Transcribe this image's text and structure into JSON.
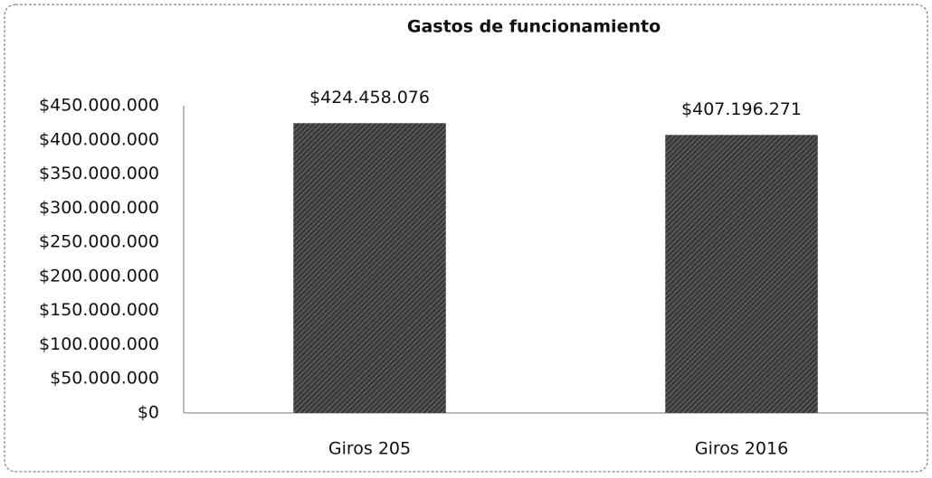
{
  "chart_data": {
    "type": "bar",
    "title": "Gastos de funcionamiento",
    "categories": [
      "Giros 205",
      "Giros 2016"
    ],
    "values": [
      424458076,
      407196271
    ],
    "value_labels": [
      "$424.458.076",
      "$407.196.271"
    ],
    "color": "#3a3a3a",
    "ylim": [
      0,
      450000000
    ],
    "yticks": [
      {
        "value": 0,
        "label": "$0"
      },
      {
        "value": 50000000,
        "label": "$50.000.000"
      },
      {
        "value": 100000000,
        "label": "$100.000.000"
      },
      {
        "value": 150000000,
        "label": "$150.000.000"
      },
      {
        "value": 200000000,
        "label": "$200.000.000"
      },
      {
        "value": 250000000,
        "label": "$250.000.000"
      },
      {
        "value": 300000000,
        "label": "$300.000.000"
      },
      {
        "value": 350000000,
        "label": "$350.000.000"
      },
      {
        "value": 400000000,
        "label": "$400.000.000"
      },
      {
        "value": 450000000,
        "label": "$450.000.000"
      }
    ],
    "grid": false
  }
}
